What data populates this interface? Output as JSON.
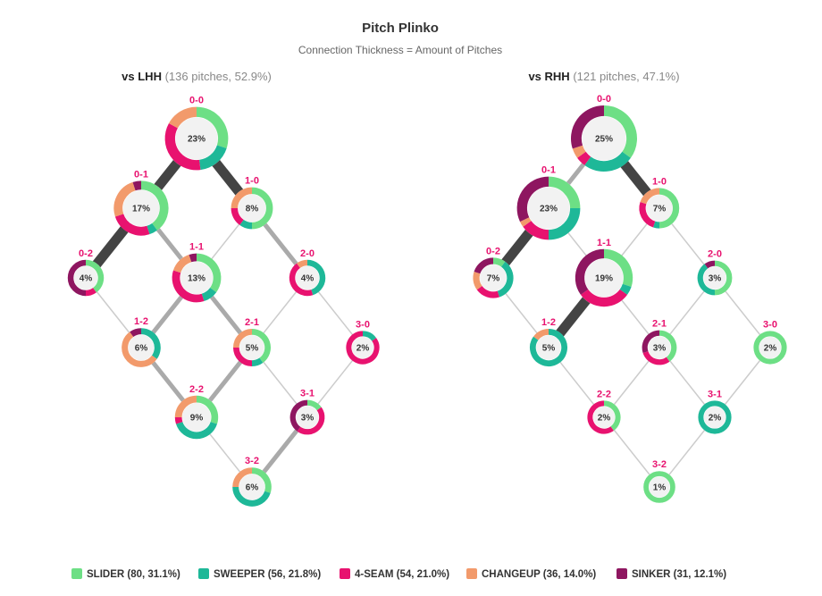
{
  "header": {
    "title": "Pitch Plinko",
    "subtitle": "Connection Thickness = Amount of Pitches"
  },
  "colors": {
    "slider": "#6ddf85",
    "sweeper": "#1eb898",
    "fourseam": "#e8126f",
    "changeup": "#f29a6b",
    "sinker": "#8e1660",
    "label": "#e8126f",
    "edge_light": "#cccccc",
    "edge_mid": "#aaaaaa",
    "edge_heavy": "#444444"
  },
  "legend": [
    {
      "key": "slider",
      "label": "SLIDER (80, 31.1%)"
    },
    {
      "key": "sweeper",
      "label": "SWEEPER (56, 21.8%)"
    },
    {
      "key": "fourseam",
      "label": "4-SEAM (54, 21.0%)"
    },
    {
      "key": "changeup",
      "label": "CHANGEUP (36, 14.0%)"
    },
    {
      "key": "sinker",
      "label": "SINKER (31, 12.1%)"
    }
  ],
  "chart_data": [
    {
      "type": "network",
      "label_strong": "vs LHH",
      "label_rest": "(136 pitches, 52.9%)",
      "nodes": [
        {
          "count": "0-0",
          "pct": 23,
          "label": "23%",
          "mix": {
            "slider": 0.3,
            "sweeper": 0.18,
            "fourseam": 0.35,
            "changeup": 0.17
          }
        },
        {
          "count": "0-1",
          "pct": 17,
          "label": "17%",
          "mix": {
            "slider": 0.4,
            "sweeper": 0.05,
            "fourseam": 0.25,
            "changeup": 0.25,
            "sinker": 0.05
          }
        },
        {
          "count": "1-0",
          "pct": 8,
          "label": "8%",
          "mix": {
            "slider": 0.5,
            "sweeper": 0.1,
            "fourseam": 0.15,
            "changeup": 0.25
          }
        },
        {
          "count": "0-2",
          "pct": 4,
          "label": "4%",
          "mix": {
            "slider": 0.4,
            "fourseam": 0.1,
            "sinker": 0.5
          }
        },
        {
          "count": "1-1",
          "pct": 13,
          "label": "13%",
          "mix": {
            "slider": 0.35,
            "sweeper": 0.1,
            "fourseam": 0.35,
            "changeup": 0.15,
            "sinker": 0.05
          }
        },
        {
          "count": "2-0",
          "pct": 4,
          "label": "4%",
          "mix": {
            "sweeper": 0.45,
            "fourseam": 0.45,
            "changeup": 0.1
          }
        },
        {
          "count": "1-2",
          "pct": 6,
          "label": "6%",
          "mix": {
            "sweeper": 0.35,
            "changeup": 0.55,
            "sinker": 0.1
          }
        },
        {
          "count": "2-1",
          "pct": 5,
          "label": "5%",
          "mix": {
            "slider": 0.4,
            "sweeper": 0.1,
            "fourseam": 0.25,
            "changeup": 0.25
          }
        },
        {
          "count": "3-0",
          "pct": 2,
          "label": "2%",
          "mix": {
            "sweeper": 0.15,
            "fourseam": 0.85
          }
        },
        {
          "count": "2-2",
          "pct": 9,
          "label": "9%",
          "mix": {
            "slider": 0.3,
            "sweeper": 0.4,
            "fourseam": 0.05,
            "changeup": 0.25
          }
        },
        {
          "count": "3-1",
          "pct": 3,
          "label": "3%",
          "mix": {
            "slider": 0.15,
            "fourseam": 0.45,
            "sinker": 0.4
          }
        },
        {
          "count": "3-2",
          "pct": 6,
          "label": "6%",
          "mix": {
            "slider": 0.3,
            "sweeper": 0.45,
            "changeup": 0.25
          }
        }
      ],
      "edges": [
        {
          "from": "0-0",
          "to": "0-1",
          "weight": "heavy"
        },
        {
          "from": "0-0",
          "to": "1-0",
          "weight": "heavy"
        },
        {
          "from": "0-1",
          "to": "0-2",
          "weight": "heavy"
        },
        {
          "from": "0-1",
          "to": "1-1",
          "weight": "mid"
        },
        {
          "from": "1-0",
          "to": "1-1",
          "weight": "light"
        },
        {
          "from": "1-0",
          "to": "2-0",
          "weight": "mid"
        },
        {
          "from": "0-2",
          "to": "1-2",
          "weight": "light"
        },
        {
          "from": "1-1",
          "to": "1-2",
          "weight": "mid"
        },
        {
          "from": "1-1",
          "to": "2-1",
          "weight": "mid"
        },
        {
          "from": "2-0",
          "to": "2-1",
          "weight": "light"
        },
        {
          "from": "2-0",
          "to": "3-0",
          "weight": "light"
        },
        {
          "from": "1-2",
          "to": "2-2",
          "weight": "mid"
        },
        {
          "from": "2-1",
          "to": "2-2",
          "weight": "mid"
        },
        {
          "from": "2-1",
          "to": "3-1",
          "weight": "light"
        },
        {
          "from": "3-0",
          "to": "3-1",
          "weight": "light"
        },
        {
          "from": "2-2",
          "to": "3-2",
          "weight": "light"
        },
        {
          "from": "3-1",
          "to": "3-2",
          "weight": "mid"
        }
      ]
    },
    {
      "type": "network",
      "label_strong": "vs RHH",
      "label_rest": "(121 pitches, 47.1%)",
      "nodes": [
        {
          "count": "0-0",
          "pct": 25,
          "label": "25%",
          "mix": {
            "slider": 0.35,
            "sweeper": 0.25,
            "fourseam": 0.05,
            "changeup": 0.05,
            "sinker": 0.3
          }
        },
        {
          "count": "0-1",
          "pct": 23,
          "label": "23%",
          "mix": {
            "slider": 0.25,
            "sweeper": 0.25,
            "fourseam": 0.15,
            "changeup": 0.03,
            "sinker": 0.32
          }
        },
        {
          "count": "1-0",
          "pct": 7,
          "label": "7%",
          "mix": {
            "slider": 0.5,
            "sweeper": 0.05,
            "fourseam": 0.25,
            "changeup": 0.2
          }
        },
        {
          "count": "0-2",
          "pct": 7,
          "label": "7%",
          "mix": {
            "slider": 0.1,
            "sweeper": 0.35,
            "fourseam": 0.2,
            "changeup": 0.15,
            "sinker": 0.2
          }
        },
        {
          "count": "1-1",
          "pct": 19,
          "label": "19%",
          "mix": {
            "slider": 0.3,
            "sweeper": 0.05,
            "fourseam": 0.3,
            "sinker": 0.35
          }
        },
        {
          "count": "2-0",
          "pct": 3,
          "label": "3%",
          "mix": {
            "slider": 0.5,
            "sweeper": 0.4,
            "sinker": 0.1
          }
        },
        {
          "count": "1-2",
          "pct": 5,
          "label": "5%",
          "mix": {
            "sweeper": 0.85,
            "changeup": 0.15
          }
        },
        {
          "count": "2-1",
          "pct": 3,
          "label": "3%",
          "mix": {
            "slider": 0.4,
            "fourseam": 0.3,
            "sinker": 0.3
          }
        },
        {
          "count": "3-0",
          "pct": 2,
          "label": "2%",
          "mix": {
            "slider": 1.0
          }
        },
        {
          "count": "2-2",
          "pct": 2,
          "label": "2%",
          "mix": {
            "slider": 0.4,
            "fourseam": 0.6
          }
        },
        {
          "count": "3-1",
          "pct": 2,
          "label": "2%",
          "mix": {
            "sweeper": 1.0
          }
        },
        {
          "count": "3-2",
          "pct": 1,
          "label": "1%",
          "mix": {
            "slider": 1.0
          }
        }
      ],
      "edges": [
        {
          "from": "0-0",
          "to": "0-1",
          "weight": "mid"
        },
        {
          "from": "0-0",
          "to": "1-0",
          "weight": "heavy"
        },
        {
          "from": "0-1",
          "to": "0-2",
          "weight": "heavy"
        },
        {
          "from": "0-1",
          "to": "1-1",
          "weight": "light"
        },
        {
          "from": "1-0",
          "to": "1-1",
          "weight": "light"
        },
        {
          "from": "1-0",
          "to": "2-0",
          "weight": "light"
        },
        {
          "from": "0-2",
          "to": "1-2",
          "weight": "light"
        },
        {
          "from": "1-1",
          "to": "1-2",
          "weight": "heavy"
        },
        {
          "from": "1-1",
          "to": "2-1",
          "weight": "light"
        },
        {
          "from": "2-0",
          "to": "2-1",
          "weight": "light"
        },
        {
          "from": "2-0",
          "to": "3-0",
          "weight": "light"
        },
        {
          "from": "1-2",
          "to": "2-2",
          "weight": "light"
        },
        {
          "from": "2-1",
          "to": "2-2",
          "weight": "light"
        },
        {
          "from": "2-1",
          "to": "3-1",
          "weight": "light"
        },
        {
          "from": "3-0",
          "to": "3-1",
          "weight": "light"
        },
        {
          "from": "2-2",
          "to": "3-2",
          "weight": "light"
        },
        {
          "from": "3-1",
          "to": "3-2",
          "weight": "light"
        }
      ]
    }
  ]
}
